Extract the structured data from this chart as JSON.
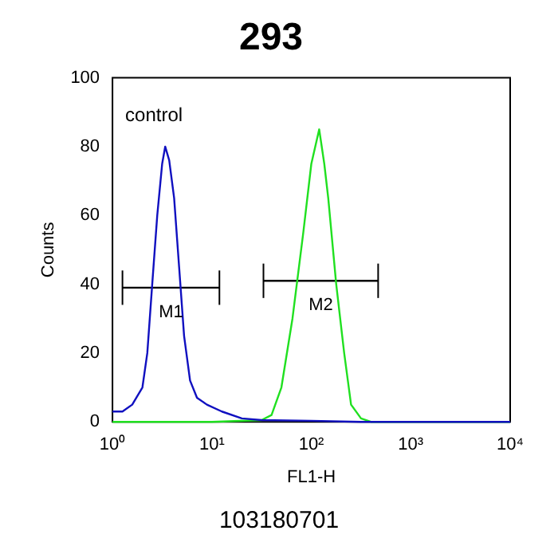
{
  "chart_data": {
    "type": "line",
    "title": "293",
    "xlabel": "FL1-H",
    "ylabel": "Counts",
    "log": "x",
    "xlim": [
      1,
      10000
    ],
    "xticks": [
      {
        "value": 1,
        "label": "10⁰"
      },
      {
        "value": 10,
        "label": "10¹"
      },
      {
        "value": 100,
        "label": "10²"
      },
      {
        "value": 1000,
        "label": "10³"
      },
      {
        "value": 10000,
        "label": "10⁴"
      }
    ],
    "ylim": [
      0,
      100
    ],
    "yticks": [
      0,
      20,
      40,
      60,
      80,
      100
    ],
    "grid": false,
    "legend": false,
    "marker": "none",
    "line_style": "solid",
    "series": [
      {
        "color": "#1010c0",
        "x": [
          1,
          1.26,
          1.58,
          2.0,
          2.24,
          2.51,
          2.82,
          3.16,
          3.39,
          3.72,
          4.17,
          4.68,
          5.25,
          6.03,
          7.08,
          8.91,
          12.6,
          20,
          31.6,
          100,
          316,
          10000
        ],
        "values": [
          3,
          3,
          5,
          10,
          20,
          40,
          60,
          75,
          80,
          76,
          65,
          45,
          25,
          12,
          7,
          5,
          3,
          1,
          0.5,
          0.3,
          0,
          0
        ]
      },
      {
        "color": "#20e020",
        "x": [
          1,
          10,
          31.6,
          39.8,
          50,
          64.6,
          83,
          100,
          120,
          135,
          148,
          178,
          214,
          251,
          316,
          398,
          1000,
          10000
        ],
        "values": [
          0,
          0,
          0.5,
          2,
          10,
          30,
          55,
          75,
          85,
          75,
          65,
          40,
          20,
          5,
          1,
          0,
          0,
          0
        ]
      },
      {
        "name": "M1",
        "color": "#000000",
        "x": [
          1.26,
          11.9
        ],
        "values": [
          39,
          39
        ],
        "errors": [
          5,
          5
        ]
      },
      {
        "name": "M2",
        "color": "#000000",
        "x": [
          33,
          470
        ],
        "values": [
          41,
          41
        ],
        "errors": [
          5,
          5
        ]
      }
    ],
    "annotations": [
      "control",
      "103180701"
    ]
  }
}
